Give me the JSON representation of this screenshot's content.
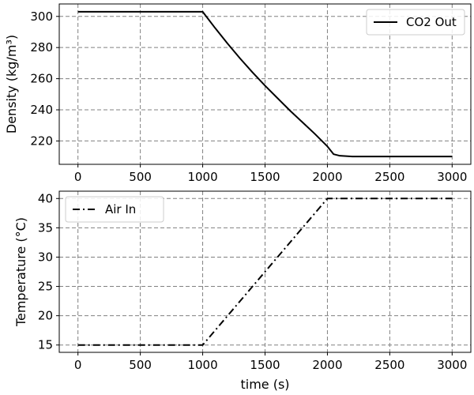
{
  "chart_data": [
    {
      "type": "line",
      "ylabel": "Density (kg/m³)",
      "xlim": [
        -150,
        3150
      ],
      "ylim": [
        205,
        308
      ],
      "xticks": [
        0,
        500,
        1000,
        1500,
        2000,
        2500,
        3000
      ],
      "xtick_labels": [
        "0",
        "500",
        "1000",
        "1500",
        "2000",
        "2500",
        "3000"
      ],
      "yticks": [
        220,
        240,
        260,
        280,
        300
      ],
      "ytick_labels": [
        "220",
        "240",
        "260",
        "280",
        "300"
      ],
      "grid": true,
      "legend_position": "upper right",
      "series": [
        {
          "name": "CO2 Out",
          "color": "#000000",
          "style": "solid",
          "x": [
            0,
            1000,
            1100,
            1200,
            1300,
            1400,
            1500,
            1600,
            1700,
            1800,
            1900,
            2000,
            2050,
            2100,
            2200,
            2500,
            3000
          ],
          "y": [
            303,
            303,
            292.5,
            282.5,
            273,
            264,
            255.5,
            247.5,
            239.5,
            232,
            224.5,
            216.5,
            211.5,
            210.5,
            210,
            210,
            210
          ]
        }
      ]
    },
    {
      "type": "line",
      "xlabel": "time (s)",
      "ylabel": "Temperature (°C)",
      "xlim": [
        -150,
        3150
      ],
      "ylim": [
        13.75,
        41.25
      ],
      "xticks": [
        0,
        500,
        1000,
        1500,
        2000,
        2500,
        3000
      ],
      "xtick_labels": [
        "0",
        "500",
        "1000",
        "1500",
        "2000",
        "2500",
        "3000"
      ],
      "yticks": [
        15,
        20,
        25,
        30,
        35,
        40
      ],
      "ytick_labels": [
        "15",
        "20",
        "25",
        "30",
        "35",
        "40"
      ],
      "grid": true,
      "legend_position": "upper left",
      "series": [
        {
          "name": "Air In",
          "color": "#000000",
          "style": "dashdot",
          "x": [
            0,
            1000,
            2000,
            3000
          ],
          "y": [
            15,
            15,
            40,
            40
          ]
        }
      ]
    }
  ]
}
